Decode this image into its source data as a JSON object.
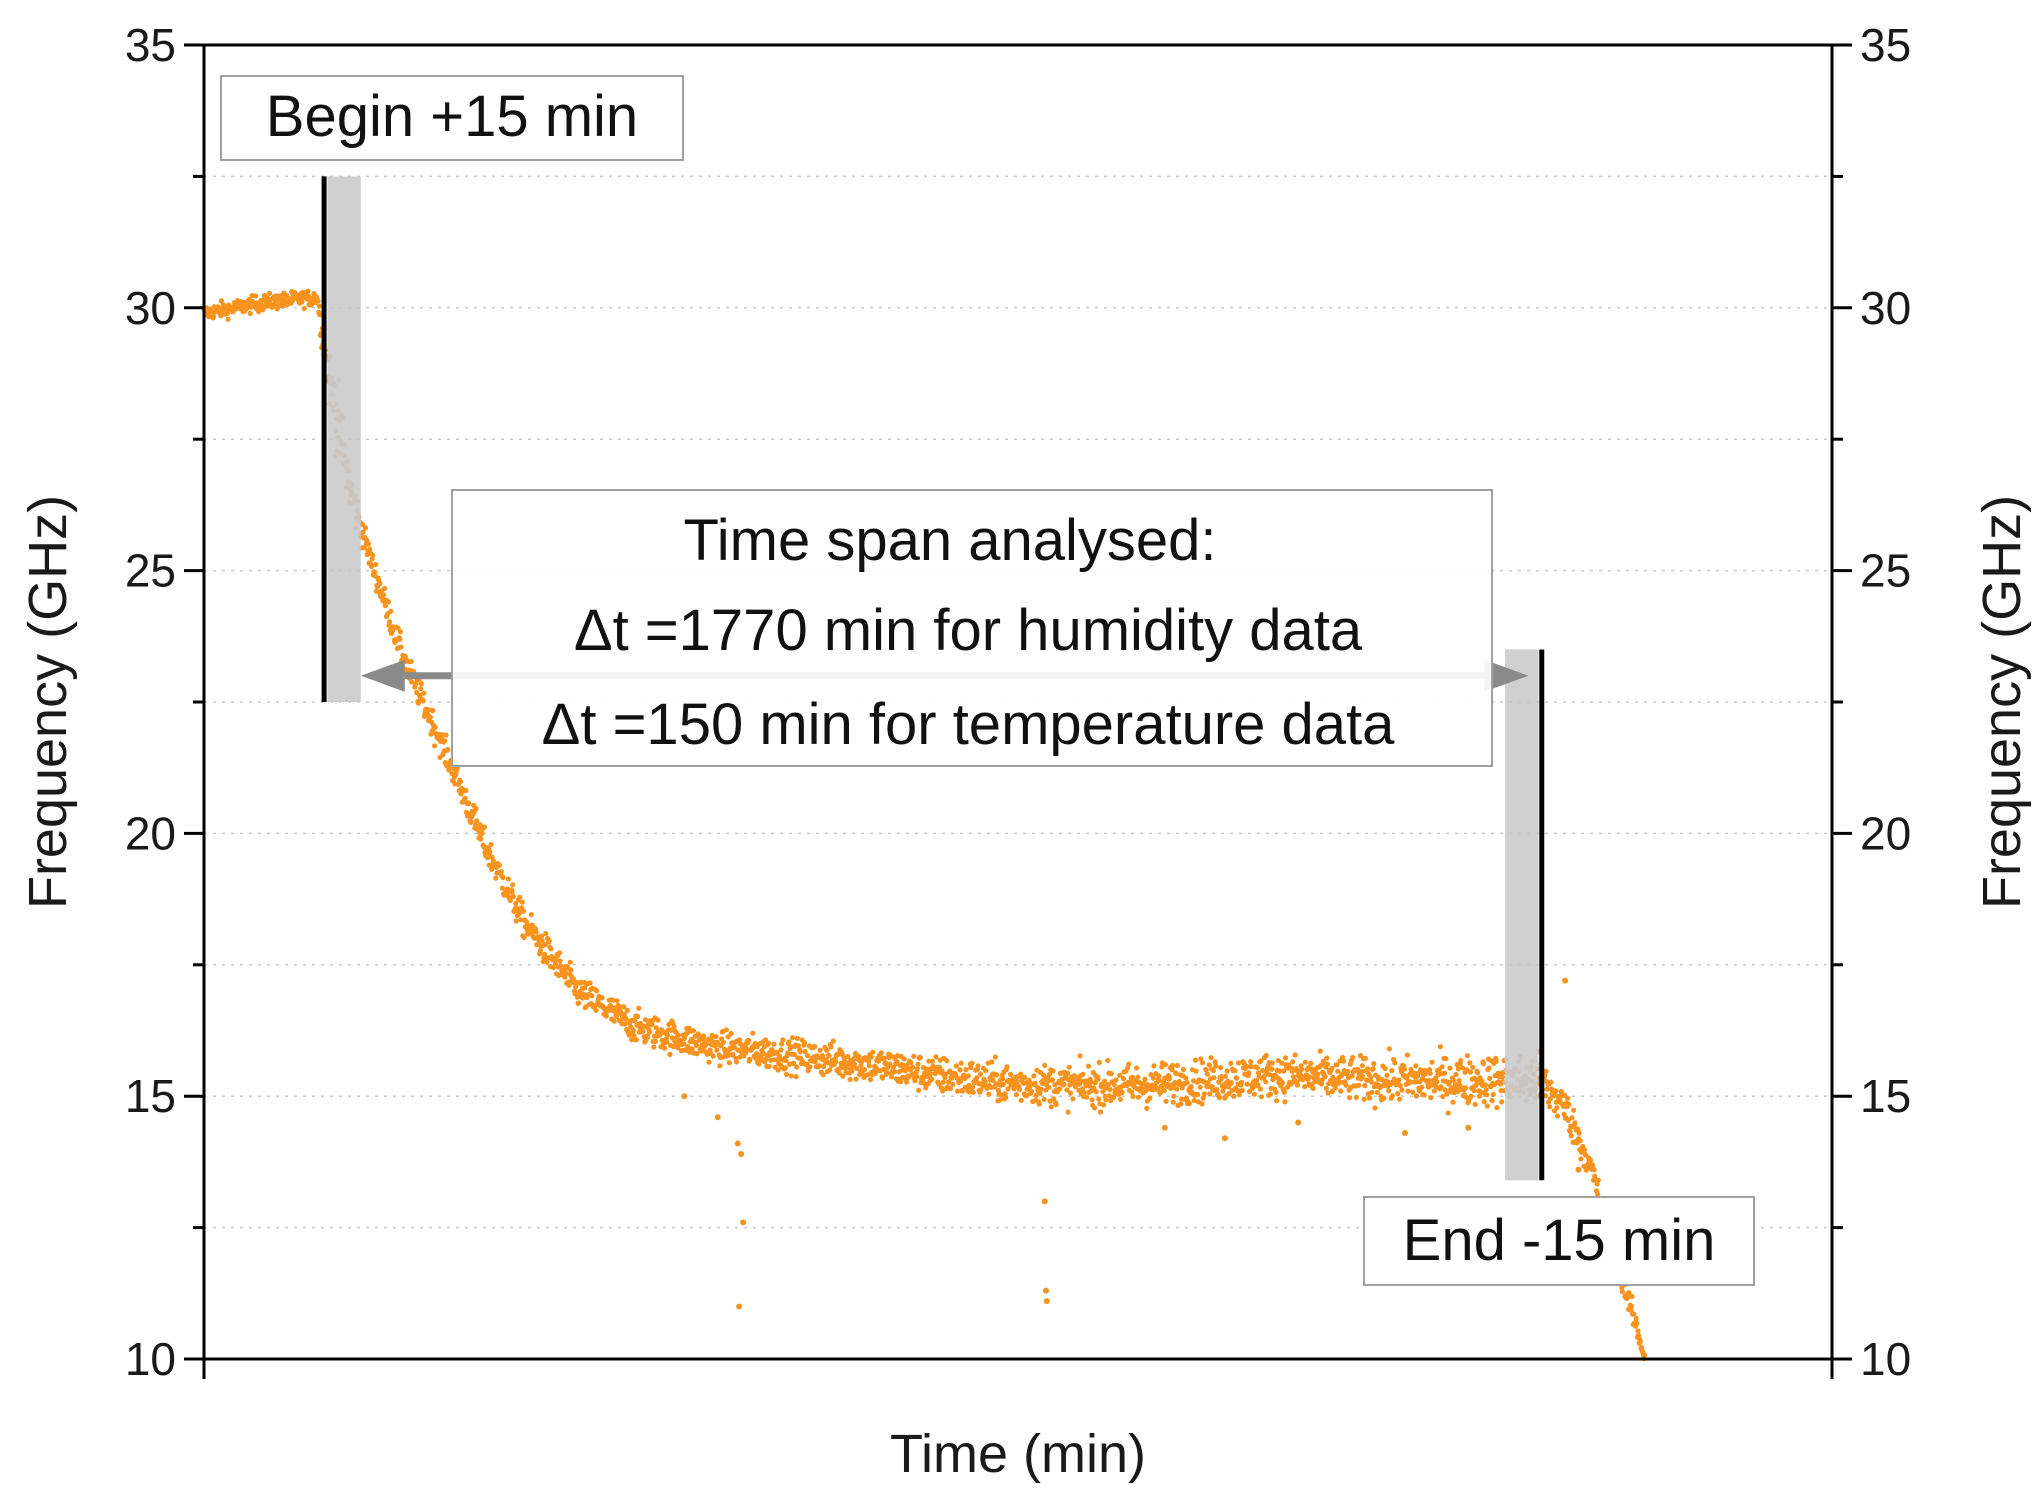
{
  "chart_data": {
    "type": "scatter",
    "xlabel": "Time (min)",
    "ylabel": "Frequency (GHz)",
    "ylabel_right": "Frequency (GHz)",
    "xlim": [
      0,
      2440
    ],
    "ylim": [
      10,
      35
    ],
    "yticks": [
      10,
      15,
      20,
      25,
      30,
      35
    ],
    "x_tick_labels_shown": false,
    "grid": "horizontal-dotted",
    "colors": {
      "points": "#f7931e",
      "marker_band": "#c8c8c8",
      "marker_line": "#000000",
      "arrow": "#8a8a8a"
    },
    "series": [
      {
        "trend": [
          [
            0,
            29.9
          ],
          [
            90,
            30.1
          ],
          [
            170,
            30.2
          ],
          [
            180,
            29.2
          ],
          [
            220,
            26.5
          ],
          [
            250,
            25.2
          ],
          [
            300,
            23.3
          ],
          [
            360,
            21.6
          ],
          [
            420,
            19.8
          ],
          [
            480,
            18.3
          ],
          [
            560,
            17.0
          ],
          [
            650,
            16.3
          ],
          [
            760,
            15.95
          ],
          [
            900,
            15.75
          ],
          [
            1000,
            15.6
          ],
          [
            1100,
            15.4
          ],
          [
            1200,
            15.25
          ],
          [
            1300,
            15.2
          ],
          [
            1400,
            15.2
          ],
          [
            1500,
            15.3
          ],
          [
            1600,
            15.4
          ],
          [
            1700,
            15.35
          ],
          [
            1760,
            15.3
          ],
          [
            2000,
            15.3
          ],
          [
            2040,
            14.8
          ],
          [
            2080,
            13.6
          ],
          [
            2110,
            12.2
          ],
          [
            2140,
            10.9
          ],
          [
            2160,
            10.0
          ]
        ],
        "noise": [
          [
            0,
            0.15
          ],
          [
            170,
            0.15
          ],
          [
            200,
            0.8
          ],
          [
            240,
            0.25
          ],
          [
            500,
            0.3
          ],
          [
            800,
            0.3
          ],
          [
            1100,
            0.35
          ],
          [
            1400,
            0.4
          ],
          [
            1700,
            0.4
          ],
          [
            2000,
            0.5
          ],
          [
            2060,
            0.3
          ],
          [
            2160,
            0.2
          ]
        ],
        "outliers": [
          [
            720,
            15.0
          ],
          [
            770,
            14.6
          ],
          [
            800,
            14.1
          ],
          [
            805,
            13.9
          ],
          [
            808,
            12.6
          ],
          [
            802,
            11.0
          ],
          [
            1260,
            13.0
          ],
          [
            1262,
            11.3
          ],
          [
            1263,
            11.1
          ],
          [
            1440,
            14.4
          ],
          [
            1530,
            14.2
          ],
          [
            1640,
            14.5
          ],
          [
            1800,
            14.3
          ],
          [
            1895,
            14.4
          ],
          [
            2040,
            17.2
          ],
          [
            2060,
            13.6
          ]
        ]
      }
    ],
    "markers": [
      {
        "type": "vline",
        "x": 180,
        "y_range": [
          22.5,
          32.5
        ],
        "band_x": [
          185,
          235
        ]
      },
      {
        "type": "vline",
        "x": 2005,
        "y_range": [
          13.4,
          23.5
        ],
        "band_x": [
          1950,
          2000
        ]
      }
    ],
    "arrow": {
      "from": [
        235,
        23.0
      ],
      "to": [
        1985,
        23.0
      ],
      "double_headed": true
    },
    "annotations": {
      "begin": "Begin +15 min",
      "end": "End -15 min",
      "span_title": "Time span analysed:",
      "span_humidity": "Δt =1770 min for humidity data",
      "span_temperature": "Δt =150 min for temperature data"
    }
  }
}
